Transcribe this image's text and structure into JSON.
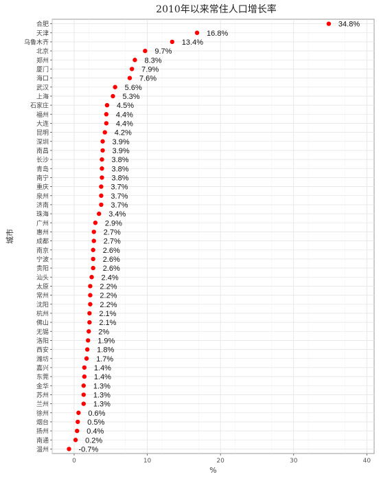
{
  "chart_data": {
    "type": "scatter",
    "title": "2010年以来常住人口增长率",
    "xlabel": "%",
    "ylabel": "城市",
    "xlim": [
      -3,
      41
    ],
    "xticks": [
      0,
      10,
      20,
      30,
      40
    ],
    "grid": true,
    "legend": "none",
    "point_color": "#ff0000",
    "categories": [
      "合肥",
      "天津",
      "乌鲁木齐",
      "北京",
      "郑州",
      "厦门",
      "海口",
      "武汉",
      "上海",
      "石家庄",
      "福州",
      "大连",
      "昆明",
      "深圳",
      "南昌",
      "长沙",
      "青岛",
      "南宁",
      "重庆",
      "泉州",
      "济南",
      "珠海",
      "广州",
      "惠州",
      "成都",
      "南京",
      "宁波",
      "贵阳",
      "汕头",
      "太原",
      "常州",
      "沈阳",
      "杭州",
      "佛山",
      "无锡",
      "洛阳",
      "西安",
      "潍坊",
      "嘉兴",
      "东莞",
      "金华",
      "苏州",
      "兰州",
      "徐州",
      "烟台",
      "扬州",
      "南通",
      "温州"
    ],
    "values": [
      34.8,
      16.8,
      13.4,
      9.7,
      8.3,
      7.9,
      7.6,
      5.6,
      5.3,
      4.5,
      4.4,
      4.4,
      4.2,
      3.9,
      3.9,
      3.8,
      3.8,
      3.8,
      3.7,
      3.7,
      3.7,
      3.4,
      2.9,
      2.7,
      2.7,
      2.6,
      2.6,
      2.6,
      2.4,
      2.2,
      2.2,
      2.2,
      2.1,
      2.1,
      2.0,
      1.9,
      1.8,
      1.7,
      1.4,
      1.4,
      1.3,
      1.3,
      1.3,
      0.6,
      0.5,
      0.4,
      0.2,
      -0.7
    ],
    "data_labels": [
      "34.8%",
      "16.8%",
      "13.4%",
      "9.7%",
      "8.3%",
      "7.9%",
      "7.6%",
      "5.6%",
      "5.3%",
      "4.5%",
      "4.4%",
      "4.4%",
      "4.2%",
      "3.9%",
      "3.9%",
      "3.8%",
      "3.8%",
      "3.8%",
      "3.7%",
      "3.7%",
      "3.7%",
      "3.4%",
      "2.9%",
      "2.7%",
      "2.7%",
      "2.6%",
      "2.6%",
      "2.6%",
      "2.4%",
      "2.2%",
      "2.2%",
      "2.2%",
      "2.1%",
      "2.1%",
      "2%",
      "1.9%",
      "1.8%",
      "1.7%",
      "1.4%",
      "1.4%",
      "1.3%",
      "1.3%",
      "1.3%",
      "0.6%",
      "0.5%",
      "0.4%",
      "0.2%",
      "-0.7%"
    ]
  }
}
